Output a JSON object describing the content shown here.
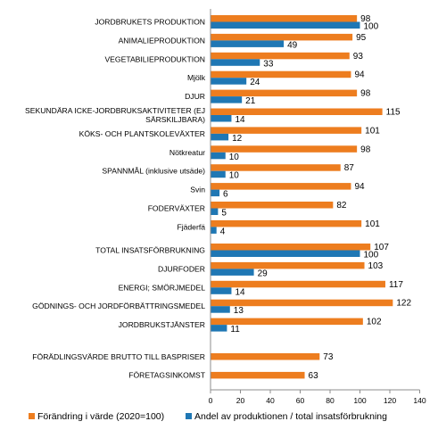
{
  "chart_data": {
    "type": "bar",
    "orientation": "horizontal",
    "xlim": [
      0,
      140
    ],
    "xticks": [
      0,
      20,
      40,
      60,
      80,
      100,
      120,
      140
    ],
    "grid": false,
    "legend_position": "bottom",
    "colors": {
      "change": "#ED7D1F",
      "share": "#1F77B4"
    },
    "series": [
      {
        "key": "change",
        "name": "Förändring i värde (2020=100)"
      },
      {
        "key": "share",
        "name": "Andel av produktionen / total insatsförbrukning"
      }
    ],
    "groups": [
      {
        "categories": [
          {
            "label": [
              "JORDBRUKETS PRODUKTION"
            ],
            "change": 98,
            "share": 100
          },
          {
            "label": [
              "ANIMALIEPRODUKTION"
            ],
            "change": 95,
            "share": 49
          },
          {
            "label": [
              "VEGETABILIEPRODUKTION"
            ],
            "change": 93,
            "share": 33
          },
          {
            "label": [
              "Mjölk"
            ],
            "change": 94,
            "share": 24
          },
          {
            "label": [
              "DJUR"
            ],
            "change": 98,
            "share": 21
          },
          {
            "label": [
              "SEKUNDÄRA ICKE-JORDBRUKSAKTIVITETER (EJ",
              "SÄRSKILJBARA)"
            ],
            "change": 115,
            "share": 14
          },
          {
            "label": [
              "KÖKS- OCH PLANTSKOLEVÄXTER"
            ],
            "change": 101,
            "share": 12
          },
          {
            "label": [
              "Nötkreatur"
            ],
            "change": 98,
            "share": 10
          },
          {
            "label": [
              "SPANNMÅL (inklusive utsäde)"
            ],
            "change": 87,
            "share": 10
          },
          {
            "label": [
              "Svin"
            ],
            "change": 94,
            "share": 6
          },
          {
            "label": [
              "FODERVÄXTER"
            ],
            "change": 82,
            "share": 5
          },
          {
            "label": [
              "Fjäderfä"
            ],
            "change": 101,
            "share": 4
          }
        ]
      },
      {
        "categories": [
          {
            "label": [
              "TOTAL INSATSFÖRBRUKNING"
            ],
            "change": 107,
            "share": 100
          },
          {
            "label": [
              "DJURFODER"
            ],
            "change": 103,
            "share": 29
          },
          {
            "label": [
              "ENERGI; SMÖRJMEDEL"
            ],
            "change": 117,
            "share": 14
          },
          {
            "label": [
              "GÖDNINGS- OCH JORDFÖRBÄTTRINGSMEDEL"
            ],
            "change": 122,
            "share": 13
          },
          {
            "label": [
              "JORDBRUKSTJÄNSTER"
            ],
            "change": 102,
            "share": 11
          }
        ]
      },
      {
        "categories": [
          {
            "label": [
              "FÖRÄDLINGSVÄRDE BRUTTO TILL BASPRISER"
            ],
            "change": 73,
            "share": null
          },
          {
            "label": [
              "FÖRETAGSINKOMST"
            ],
            "change": 63,
            "share": null
          }
        ]
      }
    ]
  }
}
